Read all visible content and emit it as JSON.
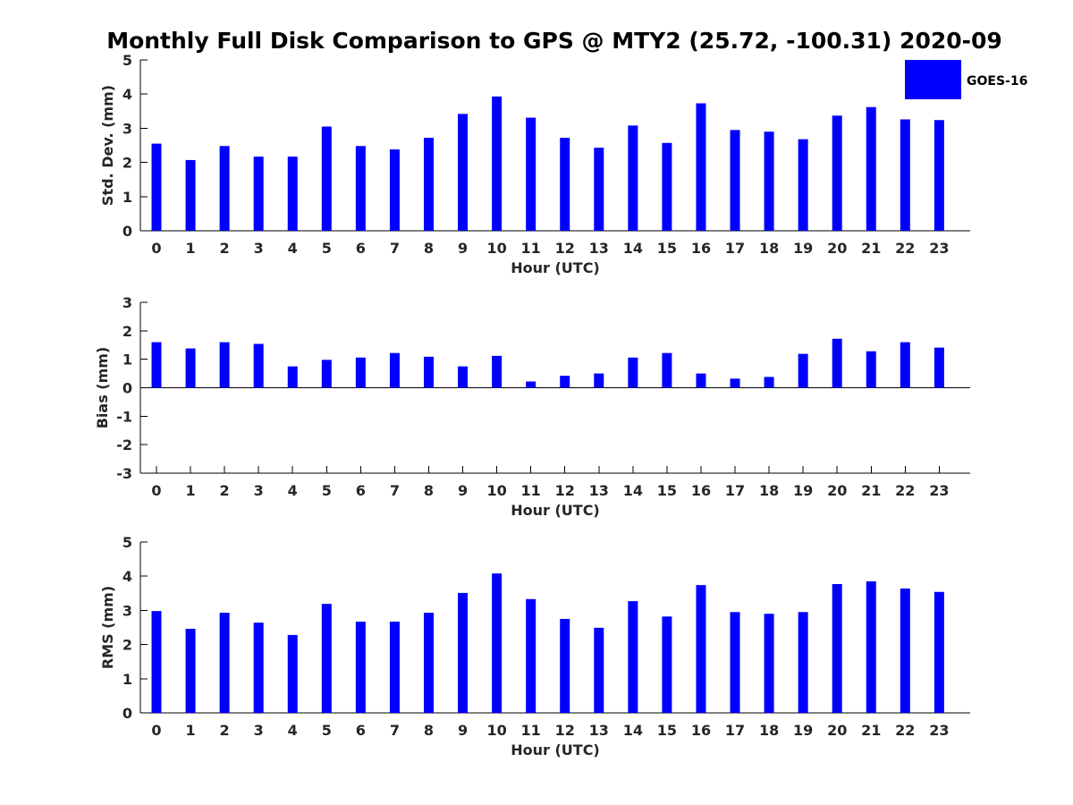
{
  "title": "Monthly Full Disk Comparison to GPS @ MTY2 (25.72, -100.31) 2020-09",
  "legend": {
    "label": "GOES-16",
    "color": "#0000ff",
    "placement": "top-right"
  },
  "chart_data": [
    {
      "type": "bar",
      "xlabel": "Hour (UTC)",
      "ylabel": "Std. Dev. (mm)",
      "ylim": [
        0,
        5
      ],
      "yticks": [
        "0",
        "1",
        "2",
        "3",
        "4",
        "5"
      ],
      "categories": [
        "0",
        "1",
        "2",
        "3",
        "4",
        "5",
        "6",
        "7",
        "8",
        "9",
        "10",
        "11",
        "12",
        "13",
        "14",
        "15",
        "16",
        "17",
        "18",
        "19",
        "20",
        "21",
        "22",
        "23"
      ],
      "series": [
        {
          "name": "GOES-16",
          "color": "#0000ff",
          "values": [
            2.55,
            2.07,
            2.48,
            2.17,
            2.17,
            3.05,
            2.48,
            2.38,
            2.72,
            3.42,
            3.93,
            3.31,
            2.72,
            2.43,
            3.08,
            2.57,
            3.73,
            2.95,
            2.9,
            2.68,
            3.37,
            3.62,
            3.26,
            3.24
          ]
        }
      ],
      "grid": false
    },
    {
      "type": "bar",
      "xlabel": "Hour (UTC)",
      "ylabel": "Bias (mm)",
      "ylim": [
        -3,
        3
      ],
      "yticks": [
        "-3",
        "-2",
        "-1",
        "0",
        "1",
        "2",
        "3"
      ],
      "categories": [
        "0",
        "1",
        "2",
        "3",
        "4",
        "5",
        "6",
        "7",
        "8",
        "9",
        "10",
        "11",
        "12",
        "13",
        "14",
        "15",
        "16",
        "17",
        "18",
        "19",
        "20",
        "21",
        "22",
        "23"
      ],
      "series": [
        {
          "name": "GOES-16",
          "color": "#0000ff",
          "values": [
            1.6,
            1.38,
            1.6,
            1.54,
            0.75,
            0.98,
            1.06,
            1.22,
            1.09,
            0.75,
            1.12,
            0.22,
            0.42,
            0.5,
            1.06,
            1.22,
            0.5,
            0.32,
            0.38,
            1.19,
            1.72,
            1.28,
            1.6,
            1.41
          ]
        }
      ],
      "grid": false
    },
    {
      "type": "bar",
      "xlabel": "Hour (UTC)",
      "ylabel": "RMS (mm)",
      "ylim": [
        0,
        5
      ],
      "yticks": [
        "0",
        "1",
        "2",
        "3",
        "4",
        "5"
      ],
      "categories": [
        "0",
        "1",
        "2",
        "3",
        "4",
        "5",
        "6",
        "7",
        "8",
        "9",
        "10",
        "11",
        "12",
        "13",
        "14",
        "15",
        "16",
        "17",
        "18",
        "19",
        "20",
        "21",
        "22",
        "23"
      ],
      "series": [
        {
          "name": "GOES-16",
          "color": "#0000ff",
          "values": [
            2.98,
            2.46,
            2.93,
            2.64,
            2.28,
            3.19,
            2.67,
            2.67,
            2.93,
            3.51,
            4.08,
            3.33,
            2.75,
            2.49,
            3.27,
            2.82,
            3.74,
            2.95,
            2.9,
            2.95,
            3.77,
            3.85,
            3.64,
            3.54
          ]
        }
      ],
      "grid": false
    }
  ]
}
